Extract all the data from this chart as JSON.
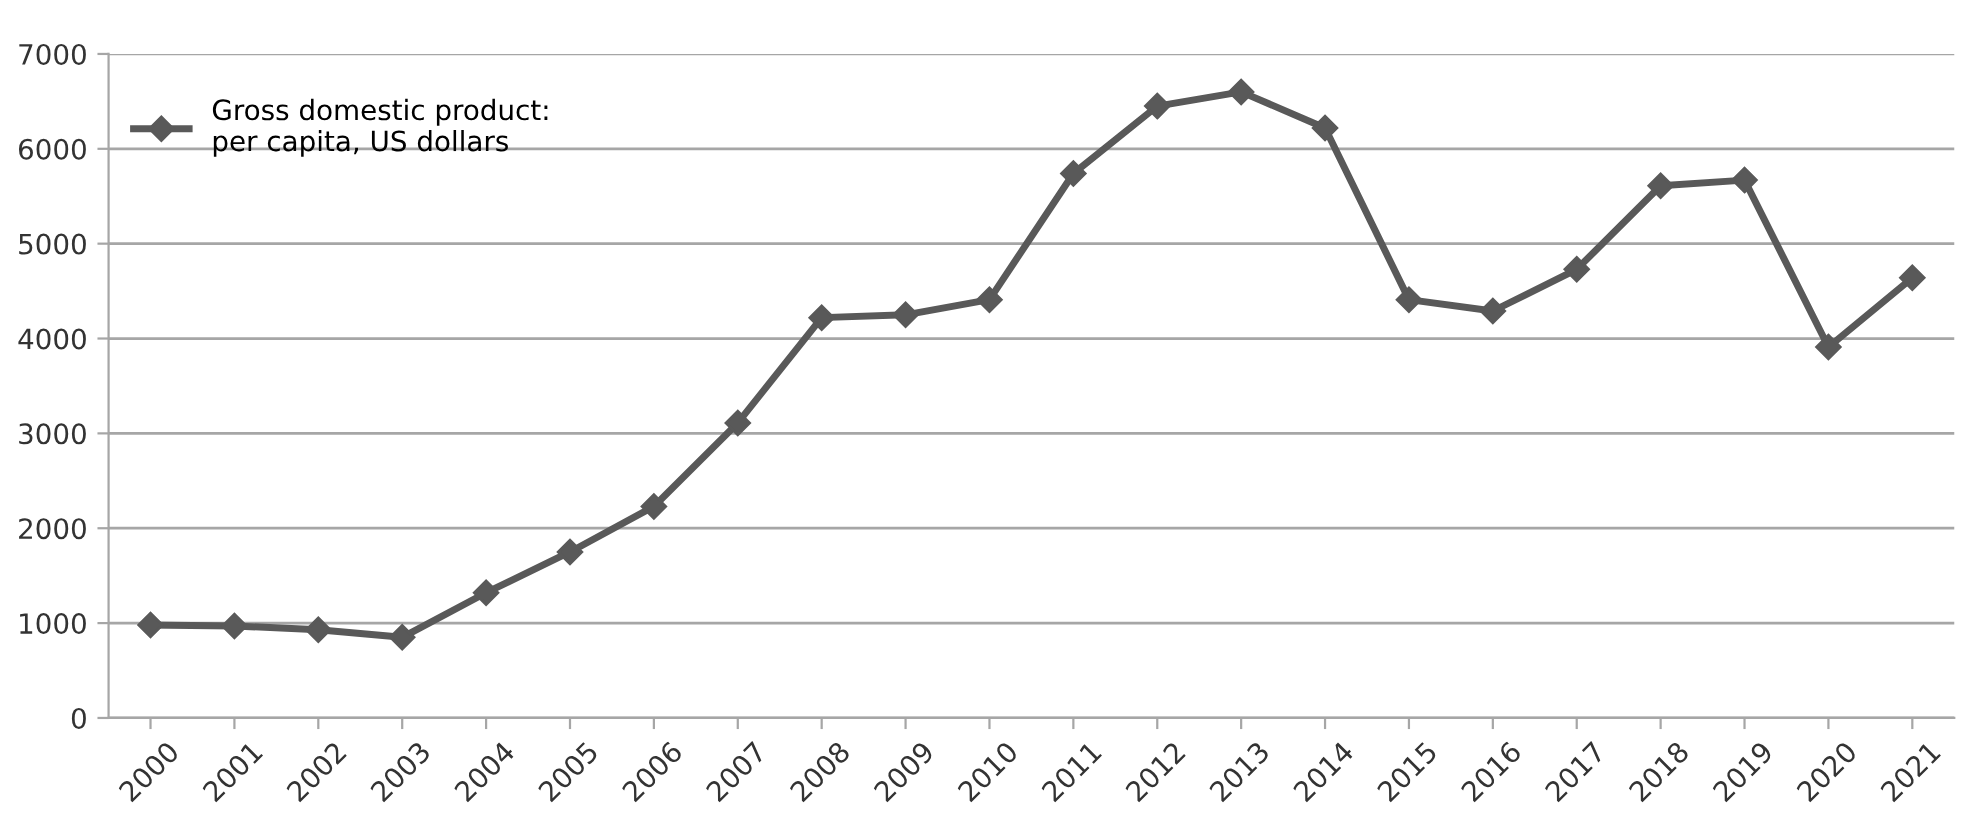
{
  "chart_data": {
    "type": "line",
    "categories": [
      "2000",
      "2001",
      "2002",
      "2003",
      "2004",
      "2005",
      "2006",
      "2007",
      "2008",
      "2009",
      "2010",
      "2011",
      "2012",
      "2013",
      "2014",
      "2015",
      "2016",
      "2017",
      "2018",
      "2019",
      "2020",
      "2021"
    ],
    "series": [
      {
        "name": "Gross domestic product:\nper capita, US dollars",
        "color": "#595959",
        "values": [
          980,
          970,
          930,
          850,
          1320,
          1750,
          2230,
          3110,
          4220,
          4250,
          4410,
          5740,
          6450,
          6600,
          6220,
          4410,
          4290,
          4730,
          5610,
          5670,
          3910,
          4640
        ]
      }
    ],
    "ylim": [
      0,
      7000
    ],
    "yticks": [
      0,
      1000,
      2000,
      3000,
      4000,
      5000,
      6000,
      7000
    ],
    "grid": "y",
    "legend": "top left",
    "marker": "diamond",
    "line_style": "solid"
  }
}
